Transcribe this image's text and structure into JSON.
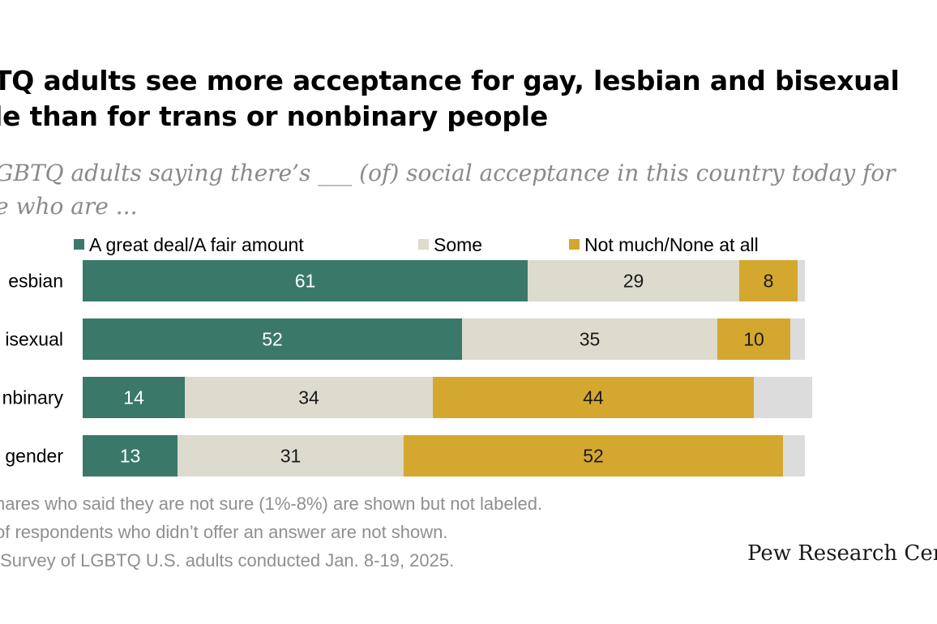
{
  "header": {
    "title": "TQ adults see more acceptance for gay, lesbian and bisexual\nle than for trans or nonbinary people",
    "subtitle": "GBTQ adults saying there’s ___ (of) social acceptance in this country today for\ne who are ..."
  },
  "colors": {
    "great_deal": "#3a786a",
    "some": "#dddbcd",
    "not_much": "#d4a82e",
    "not_sure": "#dcdcdc",
    "label_light": "#ffffff",
    "label_dark": "#1a1a1a"
  },
  "chart_data": {
    "type": "bar",
    "orientation": "horizontal",
    "stacked": true,
    "categories": [
      "esbian",
      "isexual",
      "nbinary",
      "gender"
    ],
    "series": [
      {
        "name": "A great deal/A fair amount",
        "values": [
          61,
          52,
          14,
          13
        ]
      },
      {
        "name": "Some",
        "values": [
          29,
          35,
          34,
          31
        ]
      },
      {
        "name": "Not much/None at all",
        "values": [
          8,
          10,
          44,
          52
        ]
      },
      {
        "values": [
          1,
          2,
          8,
          3
        ]
      }
    ],
    "labeled_series": [
      0,
      1,
      2
    ],
    "xlim": [
      0,
      100
    ],
    "grid": false,
    "legend_position": "top"
  },
  "footer": {
    "note1": "hares who said they are not sure (1%-8%) are shown but not labeled.",
    "note2": "of respondents who didn’t offer an answer are not shown.",
    "source": " Survey of LGBTQ U.S. adults conducted Jan. 8-19, 2025.",
    "brand": "Pew Research Cent"
  }
}
